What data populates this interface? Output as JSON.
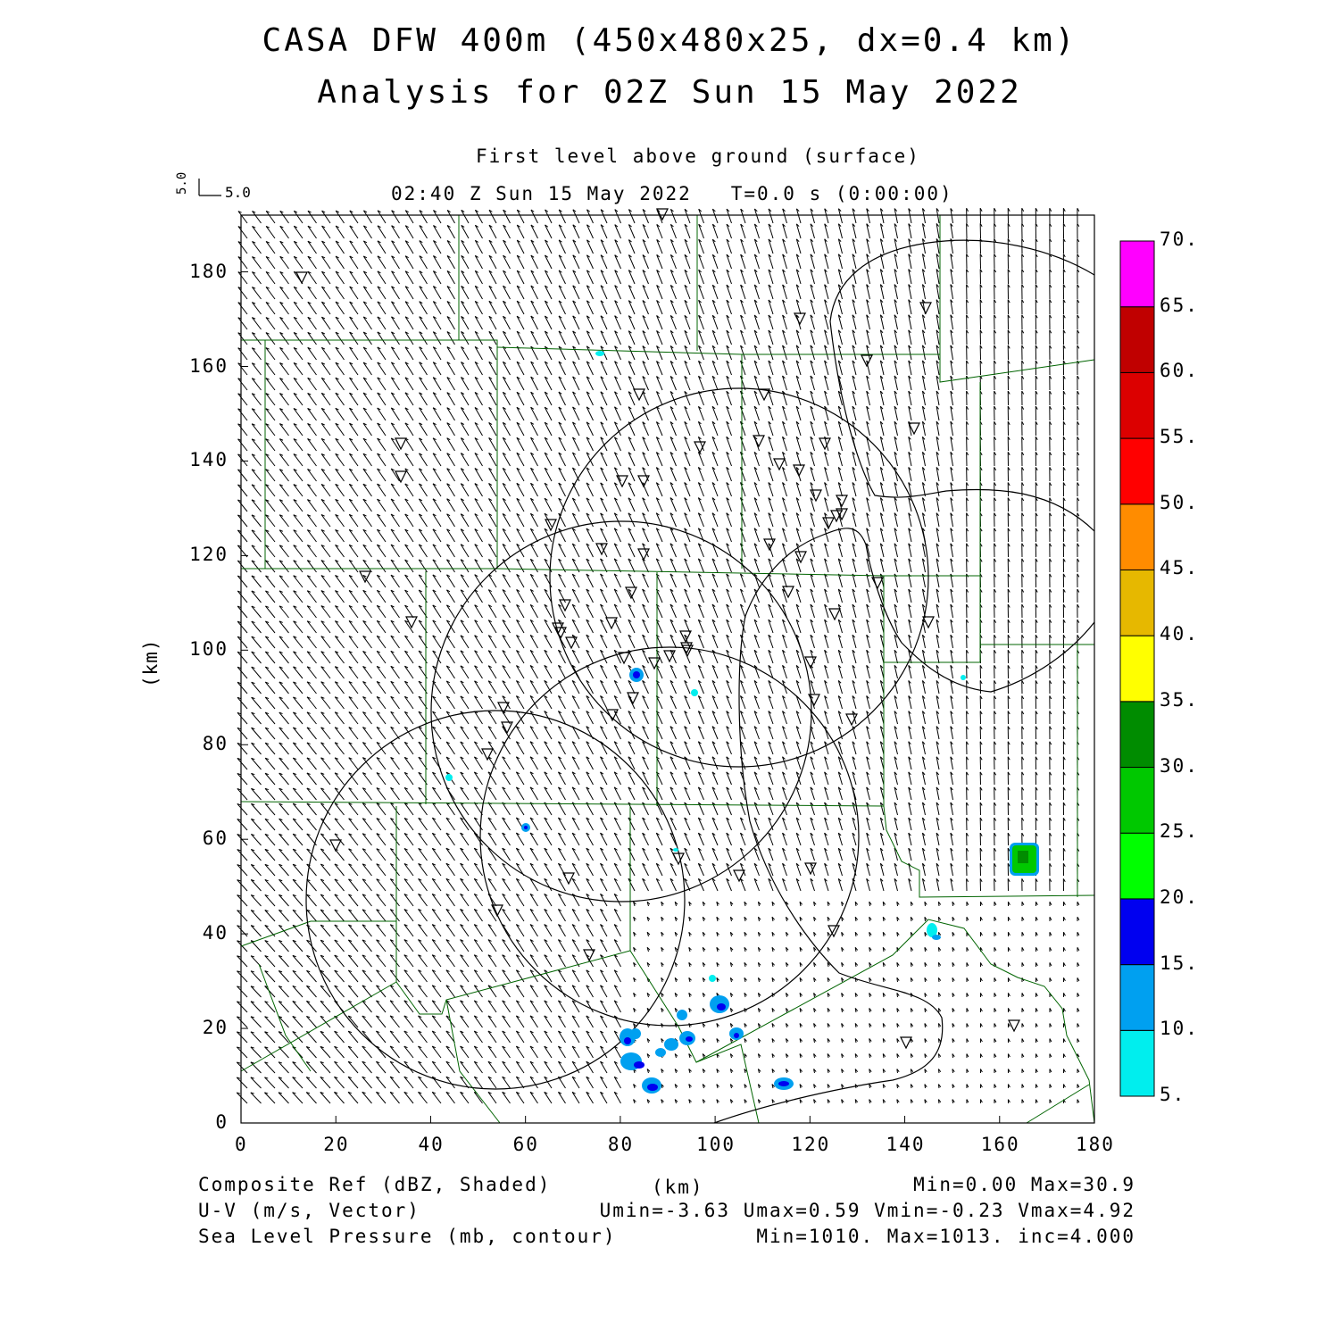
{
  "title": {
    "line1": "CASA DFW 400m (450x480x25, dx=0.4 km)",
    "line2": "Analysis for 02Z Sun 15 May 2022"
  },
  "subtitle": {
    "level": "First level above ground (surface)",
    "time": "02:40 Z Sun 15 May 2022   T=0.0 s (0:00:00)"
  },
  "vector_scale": {
    "u_ref": "5.0",
    "v_ref": "5.0"
  },
  "axes": {
    "x_unit": "(km)",
    "y_unit": "(km)",
    "x_ticks": [
      "0",
      "20",
      "40",
      "60",
      "80",
      "100",
      "120",
      "140",
      "160",
      "180"
    ],
    "y_ticks": [
      "0",
      "20",
      "40",
      "60",
      "80",
      "100",
      "120",
      "140",
      "160",
      "180"
    ],
    "x_range": [
      0,
      180
    ],
    "y_range": [
      0,
      192
    ]
  },
  "colorbar": {
    "labels": [
      "5.",
      "10.",
      "15.",
      "20.",
      "25.",
      "30.",
      "35.",
      "40.",
      "45.",
      "50.",
      "55.",
      "60.",
      "65.",
      "70."
    ],
    "colors": [
      "#00eeee",
      "#00a0f0",
      "#0000f0",
      "#00ff00",
      "#00c800",
      "#008c00",
      "#ffff00",
      "#e6b800",
      "#ff8c00",
      "#ff0000",
      "#dc0000",
      "#c00000",
      "#ff00ff"
    ]
  },
  "footer": {
    "field1": "Composite Ref (dBZ, Shaded)",
    "field2": "U-V (m/s, Vector)",
    "field3": "Sea Level Pressure (mb, contour)",
    "xunit": "(km)",
    "stats1": "Min=0.00 Max=30.9",
    "stats2": "Umin=-3.63 Umax=0.59 Vmin=-0.23 Vmax=4.92",
    "stats3": "Min=1010. Max=1013. inc=4.000"
  },
  "colors": {
    "county_lines": "#006400",
    "contours": "#000000",
    "vectors": "#000000"
  }
}
